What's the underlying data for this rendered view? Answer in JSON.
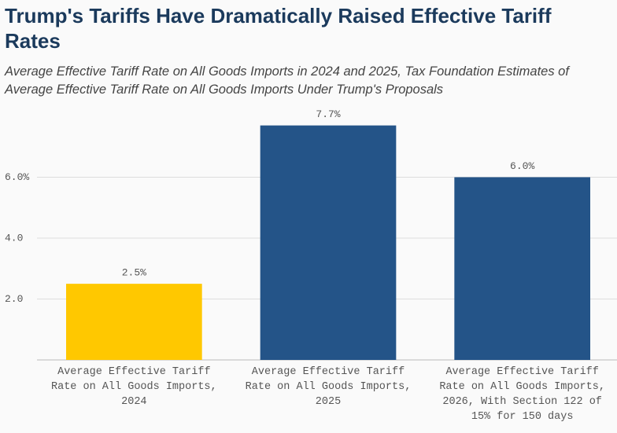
{
  "chart_data": {
    "type": "bar",
    "title": "Trump's Tariffs Have Dramatically Raised Effective Tariff Rates",
    "subtitle": "Average Effective Tariff Rate on All Goods Imports in 2024 and 2025, Tax Foundation Estimates of Average Effective Tariff Rate on All Goods Imports Under Trump's Proposals",
    "categories": [
      "Average Effective Tariff Rate on All Goods Imports, 2024",
      "Average Effective Tariff Rate on All Goods Imports, 2025",
      "Average Effective Tariff Rate on All Goods Imports, 2026, With Section 122 of 15% for 150 days"
    ],
    "values": [
      2.5,
      7.7,
      6.0
    ],
    "value_labels": [
      "2.5%",
      "7.7%",
      "6.0%"
    ],
    "colors": [
      "#ffc800",
      "#245488",
      "#245488"
    ],
    "ylim": [
      0,
      8
    ],
    "yticks": [
      {
        "value": 2,
        "label": "2.0"
      },
      {
        "value": 4,
        "label": "4.0"
      },
      {
        "value": 6,
        "label": "6.0%"
      }
    ],
    "grid": true
  }
}
